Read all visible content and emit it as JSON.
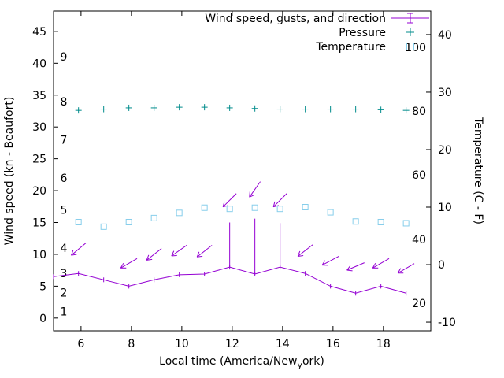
{
  "chart_data": {
    "type": "line",
    "title": "",
    "x_axis": {
      "label_pre": "Local time (America/New",
      "label_sub": "y",
      "label_post": "ork)",
      "ticks": [
        6,
        8,
        10,
        12,
        14,
        16,
        18
      ],
      "range": [
        4.91,
        19.88
      ]
    },
    "y_left": {
      "label": "Wind speed (kn - Beaufort)",
      "ticks": [
        0,
        5,
        10,
        15,
        20,
        25,
        30,
        35,
        40,
        45
      ],
      "range": [
        -2,
        48.2
      ],
      "beaufort_marks": [
        {
          "label": "1",
          "kn": 1
        },
        {
          "label": "2",
          "kn": 4
        },
        {
          "label": "3",
          "kn": 7
        },
        {
          "label": "4",
          "kn": 11
        },
        {
          "label": "5",
          "kn": 17
        },
        {
          "label": "6",
          "kn": 22
        },
        {
          "label": "7",
          "kn": 28
        },
        {
          "label": "8",
          "kn": 34
        },
        {
          "label": "9",
          "kn": 41
        }
      ]
    },
    "y_right": {
      "label": "Temperature (C - F)",
      "ticks": [
        -10,
        0,
        10,
        20,
        30,
        40
      ],
      "range": [
        -11.5,
        44.1
      ],
      "fahrenheit_marks": [
        {
          "label": "20",
          "c": -6.7
        },
        {
          "label": "40",
          "c": 4.4
        },
        {
          "label": "60",
          "c": 15.6
        },
        {
          "label": "80",
          "c": 26.7
        },
        {
          "label": "100",
          "c": 37.8
        }
      ]
    },
    "legend": [
      {
        "label": "Wind speed, gusts, and direction",
        "series": "wind"
      },
      {
        "label": "Pressure",
        "series": "pressure"
      },
      {
        "label": "Temperature",
        "series": "temperature"
      }
    ],
    "colors": {
      "wind": "#9400d3",
      "pressure": "#008b8b",
      "temperature": "#87ceeb",
      "axis": "#000000"
    },
    "series": {
      "wind": {
        "hours": [
          4.91,
          5.9,
          6.9,
          7.9,
          8.9,
          9.9,
          10.9,
          11.9,
          12.9,
          13.9,
          14.9,
          15.9,
          16.9,
          17.9,
          18.9
        ],
        "speed_kn": [
          6.5,
          7.0,
          6.0,
          5.0,
          6.0,
          6.8,
          6.9,
          8.0,
          6.9,
          8.0,
          7.0,
          5.0,
          3.9,
          5.0,
          3.9
        ],
        "gusts": [
          {
            "hour": 11.9,
            "from_kn": 8.0,
            "to_kn": 15.0
          },
          {
            "hour": 12.9,
            "from_kn": 6.9,
            "to_kn": 15.6
          },
          {
            "hour": 13.9,
            "from_kn": 8.0,
            "to_kn": 14.9
          }
        ],
        "direction_arrows": [
          {
            "hour": 5.9,
            "kn": 10.8,
            "angle_deg": 140
          },
          {
            "hour": 7.9,
            "kn": 8.6,
            "angle_deg": 150
          },
          {
            "hour": 8.9,
            "kn": 10.0,
            "angle_deg": 142
          },
          {
            "hour": 9.9,
            "kn": 10.6,
            "angle_deg": 145
          },
          {
            "hour": 10.9,
            "kn": 10.5,
            "angle_deg": 142
          },
          {
            "hour": 11.9,
            "kn": 18.5,
            "angle_deg": 135
          },
          {
            "hour": 12.9,
            "kn": 20.2,
            "angle_deg": 125
          },
          {
            "hour": 13.9,
            "kn": 18.5,
            "angle_deg": 135
          },
          {
            "hour": 14.9,
            "kn": 10.6,
            "angle_deg": 142
          },
          {
            "hour": 15.9,
            "kn": 9.0,
            "angle_deg": 152
          },
          {
            "hour": 16.9,
            "kn": 8.1,
            "angle_deg": 157
          },
          {
            "hour": 17.9,
            "kn": 8.6,
            "angle_deg": 150
          },
          {
            "hour": 18.9,
            "kn": 7.8,
            "angle_deg": 150
          }
        ]
      },
      "pressure": {
        "hours": [
          5.9,
          6.9,
          7.9,
          8.9,
          9.9,
          10.9,
          11.9,
          12.9,
          13.9,
          14.9,
          15.9,
          16.9,
          17.9,
          18.9
        ],
        "level_kn_axis": [
          32.6,
          32.8,
          33.0,
          33.0,
          33.1,
          33.1,
          33.0,
          32.9,
          32.8,
          32.8,
          32.8,
          32.8,
          32.7,
          32.6
        ]
      },
      "temperature": {
        "hours": [
          5.9,
          6.9,
          7.9,
          8.9,
          9.9,
          10.9,
          11.9,
          12.9,
          13.9,
          14.9,
          15.9,
          16.9,
          17.9,
          18.9
        ],
        "celsius": [
          7.4,
          6.6,
          7.4,
          8.1,
          9.0,
          9.9,
          9.7,
          9.9,
          9.7,
          10.0,
          9.1,
          7.5,
          7.4,
          7.2
        ]
      }
    }
  }
}
